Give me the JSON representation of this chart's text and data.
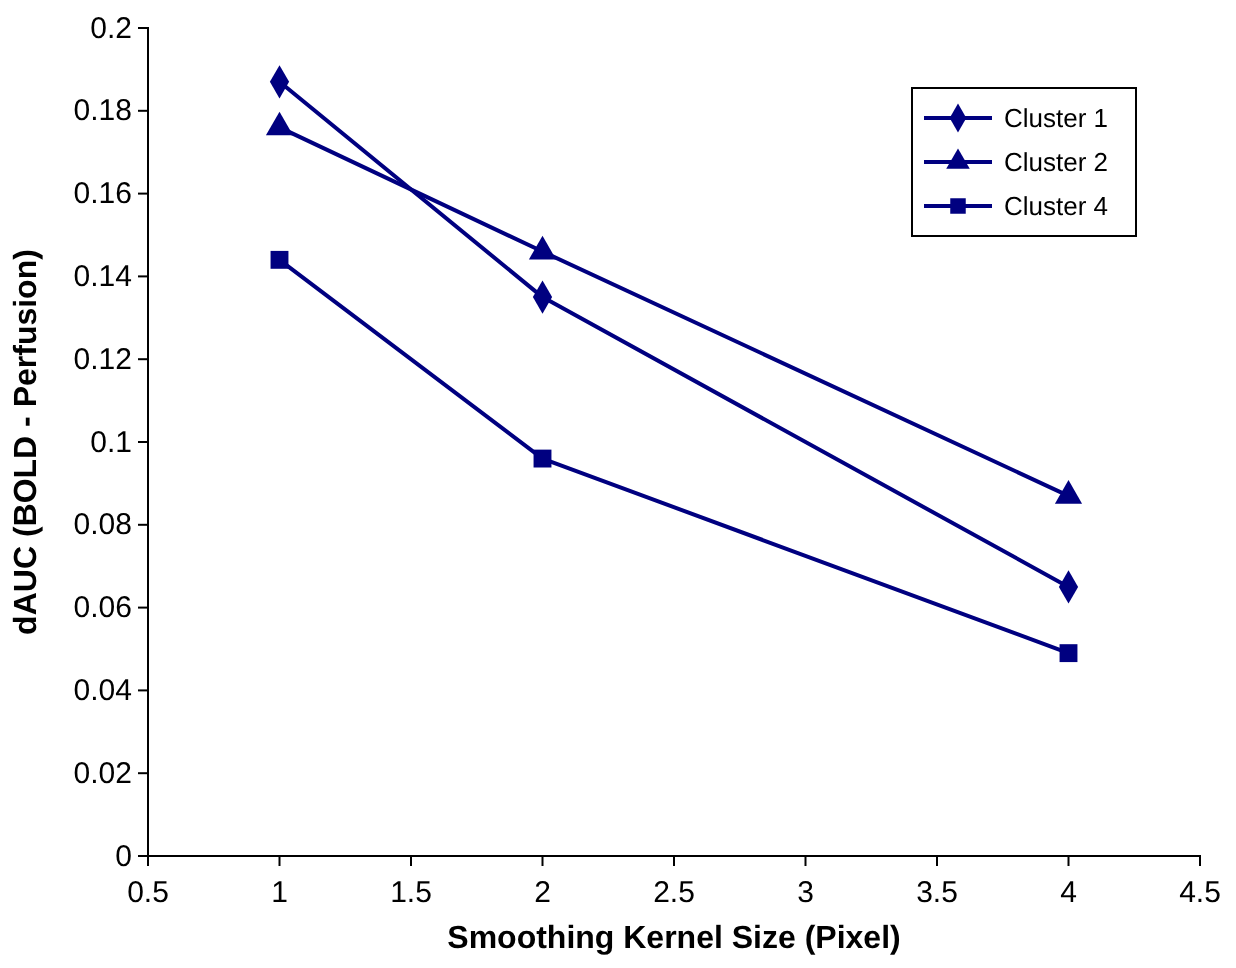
{
  "chart_data": {
    "type": "line",
    "xlabel": "Smoothing Kernel Size (Pixel)",
    "ylabel": "dAUC (BOLD - Perfusion)",
    "x": [
      1,
      2,
      4
    ],
    "series": [
      {
        "name": "Cluster 1",
        "color": "#000080",
        "marker": "diamond",
        "values": [
          0.187,
          0.135,
          0.065
        ]
      },
      {
        "name": "Cluster 2",
        "color": "#000080",
        "marker": "triangle",
        "values": [
          0.176,
          0.146,
          0.087
        ]
      },
      {
        "name": "Cluster 4",
        "color": "#000080",
        "marker": "square",
        "values": [
          0.144,
          0.096,
          0.049
        ]
      }
    ],
    "xlim": [
      0.5,
      4.5
    ],
    "xticks": [
      0.5,
      1,
      1.5,
      2,
      2.5,
      3,
      3.5,
      4,
      4.5
    ],
    "ylim": [
      0,
      0.2
    ],
    "yticks": [
      0,
      0.02,
      0.04,
      0.06,
      0.08,
      0.1,
      0.12,
      0.14,
      0.16,
      0.18,
      0.2
    ],
    "grid": false,
    "legend": "top right",
    "line_style": "solid"
  }
}
